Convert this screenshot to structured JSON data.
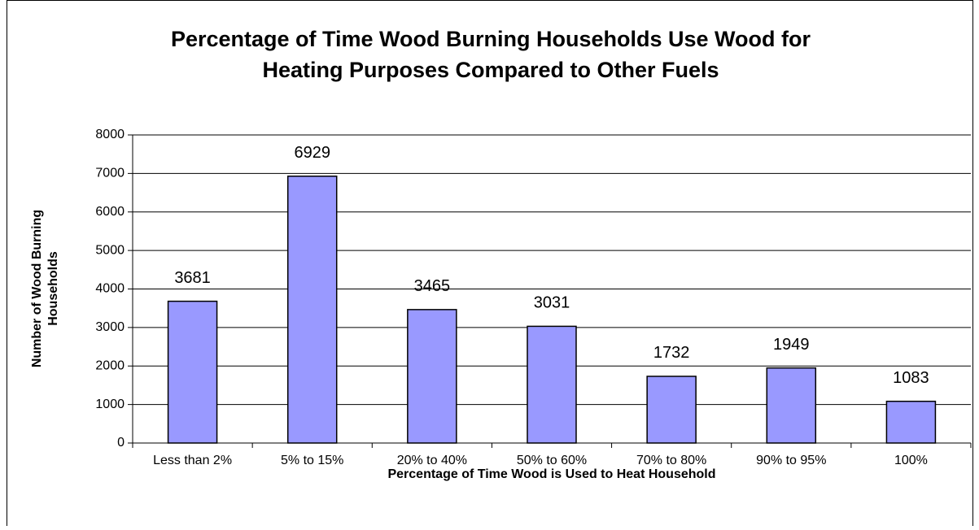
{
  "chart_data": {
    "type": "bar",
    "title": [
      "Percentage of Time Wood Burning Households Use Wood for",
      "Heating Purposes Compared to Other Fuels"
    ],
    "x_label": "Percentage of Time Wood is Used to Heat Household",
    "y_label": [
      "Number of Wood Burning",
      "Households"
    ],
    "categories": [
      "Less than 2%",
      "5% to 15%",
      "20% to 40%",
      "50% to 60%",
      "70% to 80%",
      "90% to 95%",
      "100%"
    ],
    "values": [
      3681,
      6929,
      3465,
      3031,
      1732,
      1949,
      1083
    ],
    "color": "#9999ff",
    "ylim": [
      0,
      8000
    ],
    "yticks": [
      0,
      1000,
      2000,
      3000,
      4000,
      5000,
      6000,
      7000,
      8000
    ],
    "grid": true
  }
}
